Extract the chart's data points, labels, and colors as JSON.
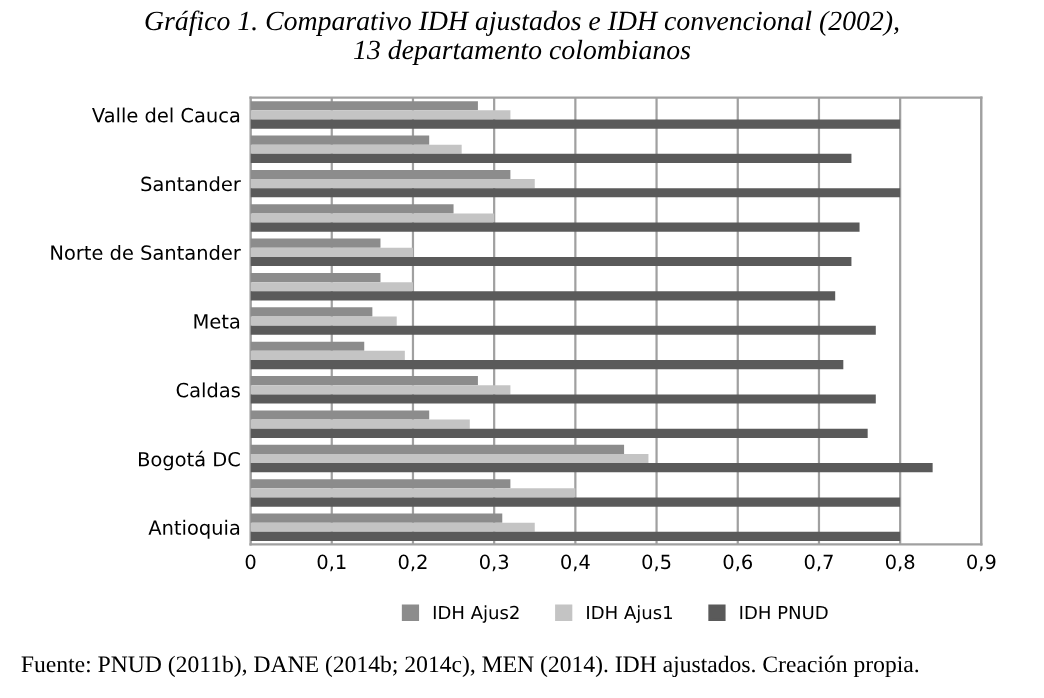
{
  "chart_data": {
    "type": "bar",
    "orientation": "horizontal",
    "title": "Gráfico 1. Comparativo IDH ajustados e IDH convencional (2002),\n13 departamento colombianos",
    "categories": [
      "Valle del Cauca",
      null,
      "Santander",
      null,
      "Norte de Santander",
      null,
      "Meta",
      null,
      "Caldas",
      null,
      "Bogotá DC",
      null,
      "Antioquia"
    ],
    "series": [
      {
        "name": "IDH Ajus2",
        "color": "#8c8c8c",
        "values": [
          0.28,
          0.22,
          0.32,
          0.25,
          0.16,
          0.16,
          0.15,
          0.14,
          0.28,
          0.22,
          0.46,
          0.32,
          0.31
        ]
      },
      {
        "name": "IDH Ajus1",
        "color": "#c4c4c4",
        "values": [
          0.32,
          0.26,
          0.35,
          0.3,
          0.2,
          0.2,
          0.18,
          0.19,
          0.32,
          0.27,
          0.49,
          0.4,
          0.35
        ]
      },
      {
        "name": "IDH PNUD",
        "color": "#5a5a5a",
        "values": [
          0.8,
          0.74,
          0.8,
          0.75,
          0.74,
          0.72,
          0.77,
          0.73,
          0.77,
          0.76,
          0.84,
          0.8,
          0.8
        ]
      }
    ],
    "xlim": [
      0,
      0.9
    ],
    "xticks": [
      0,
      {
        "value": 0.1,
        "label": "0,1"
      },
      {
        "value": 0.2,
        "label": "0,2"
      },
      {
        "value": 0.3,
        "label": "0,3"
      },
      {
        "value": 0.4,
        "label": "0,4"
      },
      {
        "value": 0.5,
        "label": "0,5"
      },
      {
        "value": 0.6,
        "label": "0,6"
      },
      {
        "value": 0.7,
        "label": "0,7"
      },
      {
        "value": 0.8,
        "label": "0,8"
      },
      {
        "value": 0.9,
        "label": "0,9"
      }
    ],
    "grid": "x",
    "legend": "bottom",
    "annotations": [
      "Fuente: PNUD (2011b), DANE (2014b; 2014c), MEN (2014). IDH ajustados. Creación propia."
    ]
  }
}
